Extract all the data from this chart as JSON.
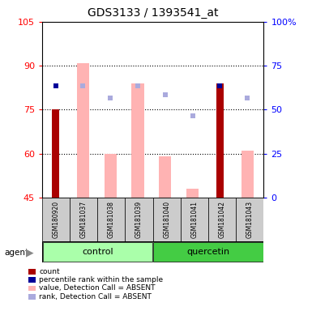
{
  "title": "GDS3133 / 1393541_at",
  "samples": [
    "GSM180920",
    "GSM181037",
    "GSM181038",
    "GSM181039",
    "GSM181040",
    "GSM181041",
    "GSM181042",
    "GSM181043"
  ],
  "ylim_left": [
    45,
    105
  ],
  "ylim_right": [
    0,
    100
  ],
  "yticks_left": [
    45,
    60,
    75,
    90,
    105
  ],
  "yticks_right": [
    0,
    25,
    50,
    75,
    100
  ],
  "left_tick_labels": [
    "45",
    "60",
    "75",
    "90",
    "105"
  ],
  "right_tick_labels": [
    "0",
    "25",
    "50",
    "75",
    "100%"
  ],
  "count_values": [
    75,
    null,
    null,
    null,
    null,
    null,
    84,
    null
  ],
  "value_absent": [
    null,
    91,
    60,
    84,
    59,
    48,
    null,
    61
  ],
  "rank_absent_left": [
    null,
    83,
    79,
    83,
    80,
    73,
    83,
    79
  ],
  "percentile_rank_left": [
    83,
    null,
    null,
    null,
    null,
    null,
    83,
    null
  ],
  "bar_width": 0.45,
  "control_group_color": "#aaffaa",
  "quercetin_group_color": "#44cc44",
  "sample_bg_color": "#cccccc",
  "count_color": "#aa0000",
  "percentile_color": "#000099",
  "value_absent_color": "#ffb3b3",
  "rank_absent_color": "#aaaadd",
  "legend_labels": [
    "count",
    "percentile rank within the sample",
    "value, Detection Call = ABSENT",
    "rank, Detection Call = ABSENT"
  ],
  "legend_colors": [
    "#aa0000",
    "#000099",
    "#ffb3b3",
    "#aaaadd"
  ]
}
